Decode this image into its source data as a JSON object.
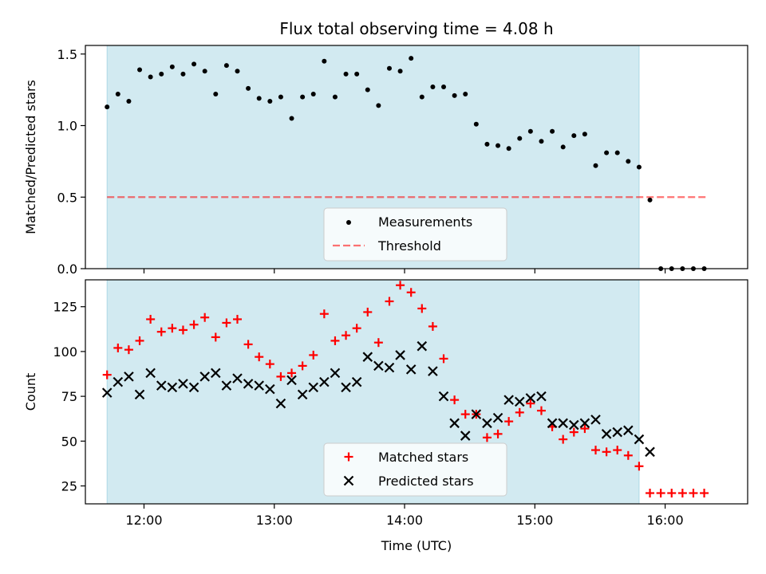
{
  "figure": {
    "title": "Flux total observing time = 4.08 h",
    "xlabel": "Time (UTC)"
  },
  "colors": {
    "shade": "#add8e6",
    "measurement": "#000000",
    "threshold": "#ff0000",
    "matched": "#ff0000",
    "predicted": "#000000"
  },
  "chart_data": [
    {
      "type": "scatter",
      "title": "Flux total observing time = 4.08 h",
      "ylabel": "Matched/Predicted stars",
      "xlim": [
        "11:33",
        "16:38"
      ],
      "ylim": [
        0,
        1.56
      ],
      "x_ticks": [
        "12:00",
        "13:00",
        "14:00",
        "15:00",
        "16:00"
      ],
      "y_ticks": [
        "0.0",
        "0.5",
        "1.0",
        "1.5"
      ],
      "shaded_span": [
        "11:43",
        "15:48"
      ],
      "threshold": {
        "name": "Threshold",
        "value": 0.5,
        "x_range": [
          "11:43",
          "16:20"
        ]
      },
      "legend": {
        "location": "lower center",
        "entries": [
          "Measurements",
          "Threshold"
        ]
      },
      "series": [
        {
          "name": "Measurements",
          "marker": "dot",
          "x": [
            "11:43",
            "11:48",
            "11:53",
            "11:58",
            "12:03",
            "12:08",
            "12:13",
            "12:18",
            "12:23",
            "12:28",
            "12:33",
            "12:38",
            "12:43",
            "12:48",
            "12:53",
            "12:58",
            "13:03",
            "13:08",
            "13:13",
            "13:18",
            "13:23",
            "13:28",
            "13:33",
            "13:38",
            "13:43",
            "13:48",
            "13:53",
            "13:58",
            "14:03",
            "14:08",
            "14:13",
            "14:18",
            "14:23",
            "14:28",
            "14:33",
            "14:38",
            "14:43",
            "14:48",
            "14:53",
            "14:58",
            "15:03",
            "15:08",
            "15:13",
            "15:18",
            "15:23",
            "15:28",
            "15:33",
            "15:38",
            "15:43",
            "15:48",
            "15:53",
            "15:58",
            "16:03",
            "16:08",
            "16:13",
            "16:18"
          ],
          "y": [
            1.13,
            1.22,
            1.17,
            1.39,
            1.34,
            1.36,
            1.41,
            1.36,
            1.43,
            1.38,
            1.22,
            1.42,
            1.38,
            1.26,
            1.19,
            1.17,
            1.2,
            1.05,
            1.2,
            1.22,
            1.45,
            1.2,
            1.36,
            1.36,
            1.25,
            1.14,
            1.4,
            1.38,
            1.47,
            1.2,
            1.27,
            1.27,
            1.21,
            1.22,
            1.01,
            0.87,
            0.86,
            0.84,
            0.91,
            0.96,
            0.89,
            0.96,
            0.85,
            0.93,
            0.94,
            0.72,
            0.81,
            0.81,
            0.75,
            0.71,
            0.48,
            0,
            0,
            0,
            0,
            0
          ]
        }
      ]
    },
    {
      "type": "scatter",
      "ylabel": "Count",
      "xlabel": "Time (UTC)",
      "xlim": [
        "11:33",
        "16:38"
      ],
      "ylim": [
        15,
        140
      ],
      "x_ticks": [
        "12:00",
        "13:00",
        "14:00",
        "15:00",
        "16:00"
      ],
      "y_ticks": [
        "25",
        "50",
        "75",
        "100",
        "125"
      ],
      "shaded_span": [
        "11:43",
        "15:48"
      ],
      "legend": {
        "location": "lower center",
        "entries": [
          "Matched stars",
          "Predicted stars"
        ]
      },
      "x": [
        "11:43",
        "11:48",
        "11:53",
        "11:58",
        "12:03",
        "12:08",
        "12:13",
        "12:18",
        "12:23",
        "12:28",
        "12:33",
        "12:38",
        "12:43",
        "12:48",
        "12:53",
        "12:58",
        "13:03",
        "13:08",
        "13:13",
        "13:18",
        "13:23",
        "13:28",
        "13:33",
        "13:38",
        "13:43",
        "13:48",
        "13:53",
        "13:58",
        "14:03",
        "14:08",
        "14:13",
        "14:18",
        "14:23",
        "14:28",
        "14:33",
        "14:38",
        "14:43",
        "14:48",
        "14:53",
        "14:58",
        "15:03",
        "15:08",
        "15:13",
        "15:18",
        "15:23",
        "15:28",
        "15:33",
        "15:38",
        "15:43",
        "15:48",
        "15:53",
        "15:58",
        "16:03",
        "16:08",
        "16:13",
        "16:18"
      ],
      "series": [
        {
          "name": "Matched stars",
          "marker": "plus",
          "values": [
            87,
            102,
            101,
            106,
            118,
            111,
            113,
            112,
            115,
            119,
            108,
            116,
            118,
            104,
            97,
            93,
            86,
            88,
            92,
            98,
            121,
            106,
            109,
            113,
            122,
            105,
            128,
            137,
            133,
            124,
            114,
            96,
            73,
            65,
            65,
            52,
            54,
            61,
            66,
            71,
            67,
            58,
            51,
            55,
            57,
            45,
            44,
            45,
            42,
            36,
            21,
            21,
            21,
            21,
            21,
            21
          ]
        },
        {
          "name": "Predicted stars",
          "marker": "x",
          "values": [
            77,
            83,
            86,
            76,
            88,
            81,
            80,
            82,
            80,
            86,
            88,
            81,
            85,
            82,
            81,
            79,
            71,
            84,
            76,
            80,
            83,
            88,
            80,
            83,
            97,
            92,
            91,
            98,
            90,
            103,
            89,
            75,
            60,
            53,
            65,
            60,
            63,
            73,
            72,
            74,
            75,
            60,
            60,
            59,
            60,
            62,
            54,
            55,
            56,
            51,
            44
          ]
        }
      ]
    }
  ]
}
